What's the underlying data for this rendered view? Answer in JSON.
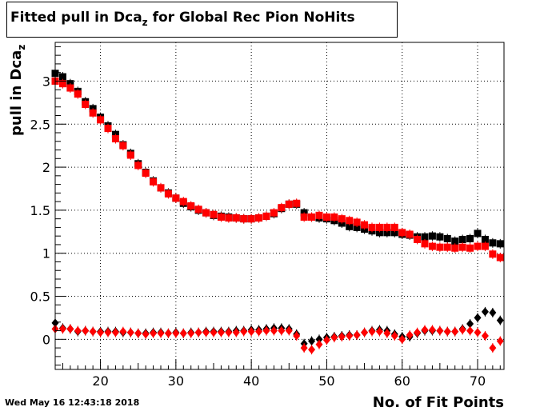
{
  "title": {
    "main": "Fitted pull in Dca",
    "sub": "z",
    "rest": " for Global Rec Pion NoHits"
  },
  "timestamp": "Wed May 16 12:43:18 2018",
  "chart_data": {
    "type": "scatter",
    "title": "Fitted pull in Dca_z for Global Rec Pion NoHits",
    "xlabel": "No. of Fit Points",
    "ylabel": "pull in Dca_z",
    "xlim": [
      14,
      73.5
    ],
    "ylim": [
      -0.35,
      3.45
    ],
    "xticks": [
      20,
      30,
      40,
      50,
      60,
      70
    ],
    "yticks": [
      0,
      0.5,
      1,
      1.5,
      2,
      2.5,
      3
    ],
    "ytick_labels": [
      "0",
      "0.5",
      "1",
      "1.5",
      "2",
      "2.5",
      "3"
    ],
    "grid": true,
    "colors": {
      "black": "#000000",
      "red": "#ff0000"
    },
    "x": [
      14,
      15,
      16,
      17,
      18,
      19,
      20,
      21,
      22,
      23,
      24,
      25,
      26,
      27,
      28,
      29,
      30,
      31,
      32,
      33,
      34,
      35,
      36,
      37,
      38,
      39,
      40,
      41,
      42,
      43,
      44,
      45,
      46,
      47,
      48,
      49,
      50,
      51,
      52,
      53,
      54,
      55,
      56,
      57,
      58,
      59,
      60,
      61,
      62,
      63,
      64,
      65,
      66,
      67,
      68,
      69,
      70,
      71,
      72,
      73
    ],
    "series": [
      {
        "marker": "square",
        "color": "#000000",
        "values": [
          3.09,
          3.05,
          2.97,
          2.88,
          2.76,
          2.68,
          2.58,
          2.48,
          2.38,
          2.26,
          2.16,
          2.04,
          1.94,
          1.84,
          1.76,
          1.7,
          1.64,
          1.58,
          1.54,
          1.5,
          1.47,
          1.44,
          1.43,
          1.42,
          1.41,
          1.4,
          1.4,
          1.41,
          1.43,
          1.46,
          1.52,
          1.57,
          1.57,
          1.47,
          1.42,
          1.41,
          1.4,
          1.38,
          1.35,
          1.31,
          1.3,
          1.28,
          1.26,
          1.24,
          1.24,
          1.24,
          1.22,
          1.21,
          1.19,
          1.19,
          1.2,
          1.19,
          1.17,
          1.14,
          1.16,
          1.17,
          1.23,
          1.16,
          1.12,
          1.11
        ]
      },
      {
        "marker": "square",
        "color": "#ff0000",
        "values": [
          3.0,
          2.97,
          2.92,
          2.85,
          2.73,
          2.63,
          2.55,
          2.45,
          2.33,
          2.25,
          2.14,
          2.02,
          1.93,
          1.83,
          1.76,
          1.69,
          1.64,
          1.6,
          1.55,
          1.51,
          1.47,
          1.45,
          1.42,
          1.41,
          1.41,
          1.4,
          1.4,
          1.41,
          1.43,
          1.47,
          1.53,
          1.57,
          1.58,
          1.42,
          1.42,
          1.44,
          1.42,
          1.42,
          1.4,
          1.38,
          1.36,
          1.33,
          1.3,
          1.3,
          1.3,
          1.3,
          1.24,
          1.22,
          1.16,
          1.11,
          1.08,
          1.07,
          1.07,
          1.06,
          1.07,
          1.06,
          1.08,
          1.08,
          0.99,
          0.95
        ]
      },
      {
        "marker": "diamond",
        "color": "#000000",
        "values": [
          0.19,
          0.13,
          0.12,
          0.09,
          0.1,
          0.09,
          0.09,
          0.09,
          0.09,
          0.08,
          0.08,
          0.07,
          0.07,
          0.08,
          0.08,
          0.07,
          0.08,
          0.07,
          0.08,
          0.08,
          0.09,
          0.09,
          0.09,
          0.09,
          0.1,
          0.1,
          0.11,
          0.11,
          0.12,
          0.13,
          0.13,
          0.12,
          0.06,
          -0.05,
          -0.02,
          0.0,
          0.02,
          0.03,
          0.04,
          0.05,
          0.05,
          0.08,
          0.1,
          0.11,
          0.1,
          0.06,
          0.03,
          0.03,
          0.07,
          0.1,
          0.1,
          0.1,
          0.09,
          0.09,
          0.12,
          0.18,
          0.25,
          0.32,
          0.31,
          0.22
        ]
      },
      {
        "marker": "diamond",
        "color": "#ff0000",
        "values": [
          0.12,
          0.12,
          0.12,
          0.1,
          0.1,
          0.09,
          0.08,
          0.08,
          0.08,
          0.09,
          0.08,
          0.07,
          0.06,
          0.07,
          0.07,
          0.07,
          0.07,
          0.07,
          0.07,
          0.08,
          0.08,
          0.08,
          0.08,
          0.08,
          0.08,
          0.09,
          0.09,
          0.09,
          0.1,
          0.1,
          0.1,
          0.1,
          0.04,
          -0.1,
          -0.12,
          -0.06,
          -0.01,
          0.02,
          0.03,
          0.04,
          0.05,
          0.08,
          0.09,
          0.09,
          0.07,
          0.04,
          0.0,
          0.05,
          0.08,
          0.11,
          0.11,
          0.1,
          0.09,
          0.09,
          0.11,
          0.1,
          0.08,
          0.04,
          -0.1,
          -0.02
        ]
      }
    ]
  }
}
